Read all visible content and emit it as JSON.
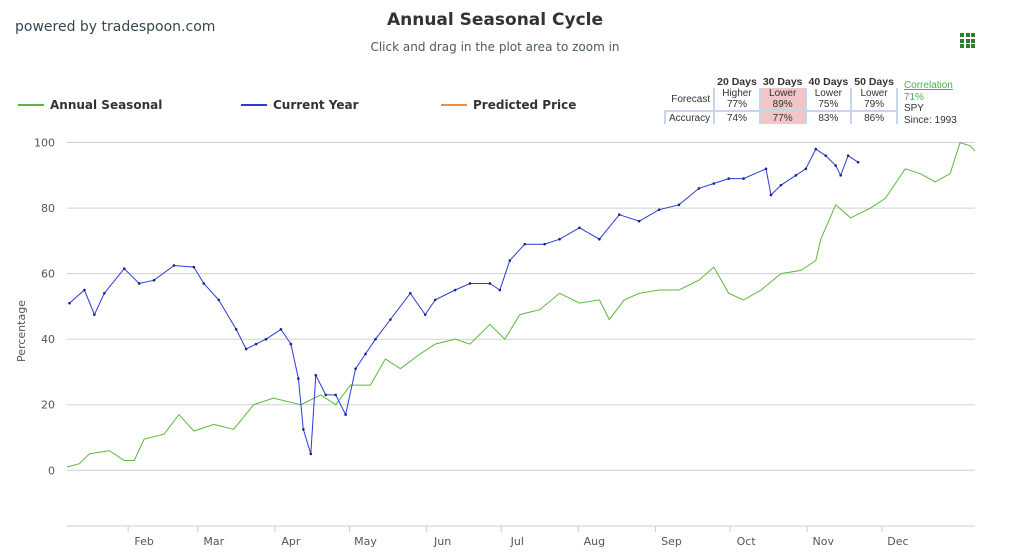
{
  "header": {
    "powered_by": "powered by tradespoon.com",
    "menu_icon": "grid-menu-icon"
  },
  "forecast_table": {
    "headers": [
      "20 Days",
      "30 Days",
      "40 Days",
      "50 Days"
    ],
    "forecast_label": "Forecast",
    "accuracy_label": "Accuracy",
    "forecast": [
      [
        "Higher",
        "77%"
      ],
      [
        "Lower",
        "89%"
      ],
      [
        "Lower",
        "75%"
      ],
      [
        "Lower",
        "79%"
      ]
    ],
    "accuracy": [
      "74%",
      "77%",
      "83%",
      "86%"
    ],
    "highlight_color": "#f1c6c6",
    "correlation_label": "Correlation",
    "correlation_value": "71%",
    "symbol": "SPY",
    "since": "Since: 1993"
  },
  "chart_data": {
    "type": "line",
    "title": "Annual Seasonal Cycle",
    "subtitle": "Click and drag in the plot area to zoom in",
    "xlabel": "",
    "ylabel": "Percentage",
    "xlim": [
      0,
      365
    ],
    "ylim": [
      -17,
      102
    ],
    "yticks": [
      0,
      20,
      40,
      60,
      80,
      100
    ],
    "xticks": [
      {
        "label": "Feb",
        "day": 31
      },
      {
        "label": "Mar",
        "day": 59
      },
      {
        "label": "Apr",
        "day": 90
      },
      {
        "label": "May",
        "day": 120
      },
      {
        "label": "Jun",
        "day": 151
      },
      {
        "label": "Jul",
        "day": 181
      },
      {
        "label": "Aug",
        "day": 212
      },
      {
        "label": "Sep",
        "day": 243
      },
      {
        "label": "Oct",
        "day": 273
      },
      {
        "label": "Nov",
        "day": 304
      },
      {
        "label": "Dec",
        "day": 334
      }
    ],
    "grid": true,
    "legend_position": "top-left",
    "series": [
      {
        "name": "Annual Seasonal",
        "color": "#5cb83c",
        "x": [
          0,
          5,
          9,
          17,
          23,
          27,
          31,
          39,
          45,
          51,
          59,
          67,
          75,
          83,
          94,
          102,
          108,
          114,
          122,
          128,
          134,
          142,
          148,
          156,
          162,
          170,
          176,
          182,
          190,
          198,
          206,
          214,
          218,
          224,
          230,
          238,
          246,
          254,
          260,
          266,
          272,
          279,
          287,
          295,
          301,
          303,
          309,
          315,
          323,
          329,
          337,
          343,
          349,
          355,
          359,
          363,
          365
        ],
        "y": [
          1,
          2,
          5,
          6,
          3,
          3,
          9.5,
          11,
          17,
          12,
          14,
          12.5,
          20,
          22,
          20,
          23,
          20,
          26,
          26,
          34,
          31,
          35.5,
          38.5,
          40,
          38.5,
          44.5,
          40,
          47.5,
          49,
          54,
          51,
          52,
          46,
          52,
          54,
          55,
          55,
          58,
          62,
          54,
          52,
          55,
          60,
          61,
          64,
          70.5,
          81,
          77,
          80,
          83,
          92,
          90.5,
          88,
          90.5,
          100,
          99,
          97.5
        ]
      },
      {
        "name": "Current Year",
        "color": "#2a3bd6",
        "x": [
          1,
          7,
          11,
          15,
          23,
          29,
          35,
          43,
          51,
          55,
          61,
          68,
          72,
          76,
          80,
          86,
          90,
          93,
          95,
          98,
          100,
          104,
          108,
          112,
          116,
          120,
          124,
          130,
          138,
          144,
          148,
          156,
          162,
          170,
          174,
          178,
          184,
          192,
          198,
          206,
          214,
          222,
          230,
          238,
          246,
          254,
          260,
          266,
          272,
          281,
          283,
          287,
          293,
          297,
          301,
          305,
          309,
          311,
          314,
          318
        ],
        "y": [
          51,
          55,
          47.5,
          54,
          61.5,
          57,
          58,
          62.5,
          62,
          57,
          52,
          43,
          37,
          38.5,
          40,
          43,
          38.5,
          28,
          12.5,
          5,
          29,
          23,
          23,
          17,
          31,
          35.5,
          40,
          46,
          54,
          47.5,
          52,
          55,
          57,
          57,
          55,
          64,
          69,
          69,
          70.5,
          74,
          70.5,
          78,
          76,
          79.5,
          81,
          86,
          87.5,
          89,
          89,
          92,
          84,
          87,
          90,
          92,
          98,
          96,
          93,
          90,
          96,
          94
        ]
      },
      {
        "name": "Predicted Price",
        "color": "#f28b45",
        "x": [],
        "y": []
      }
    ]
  }
}
